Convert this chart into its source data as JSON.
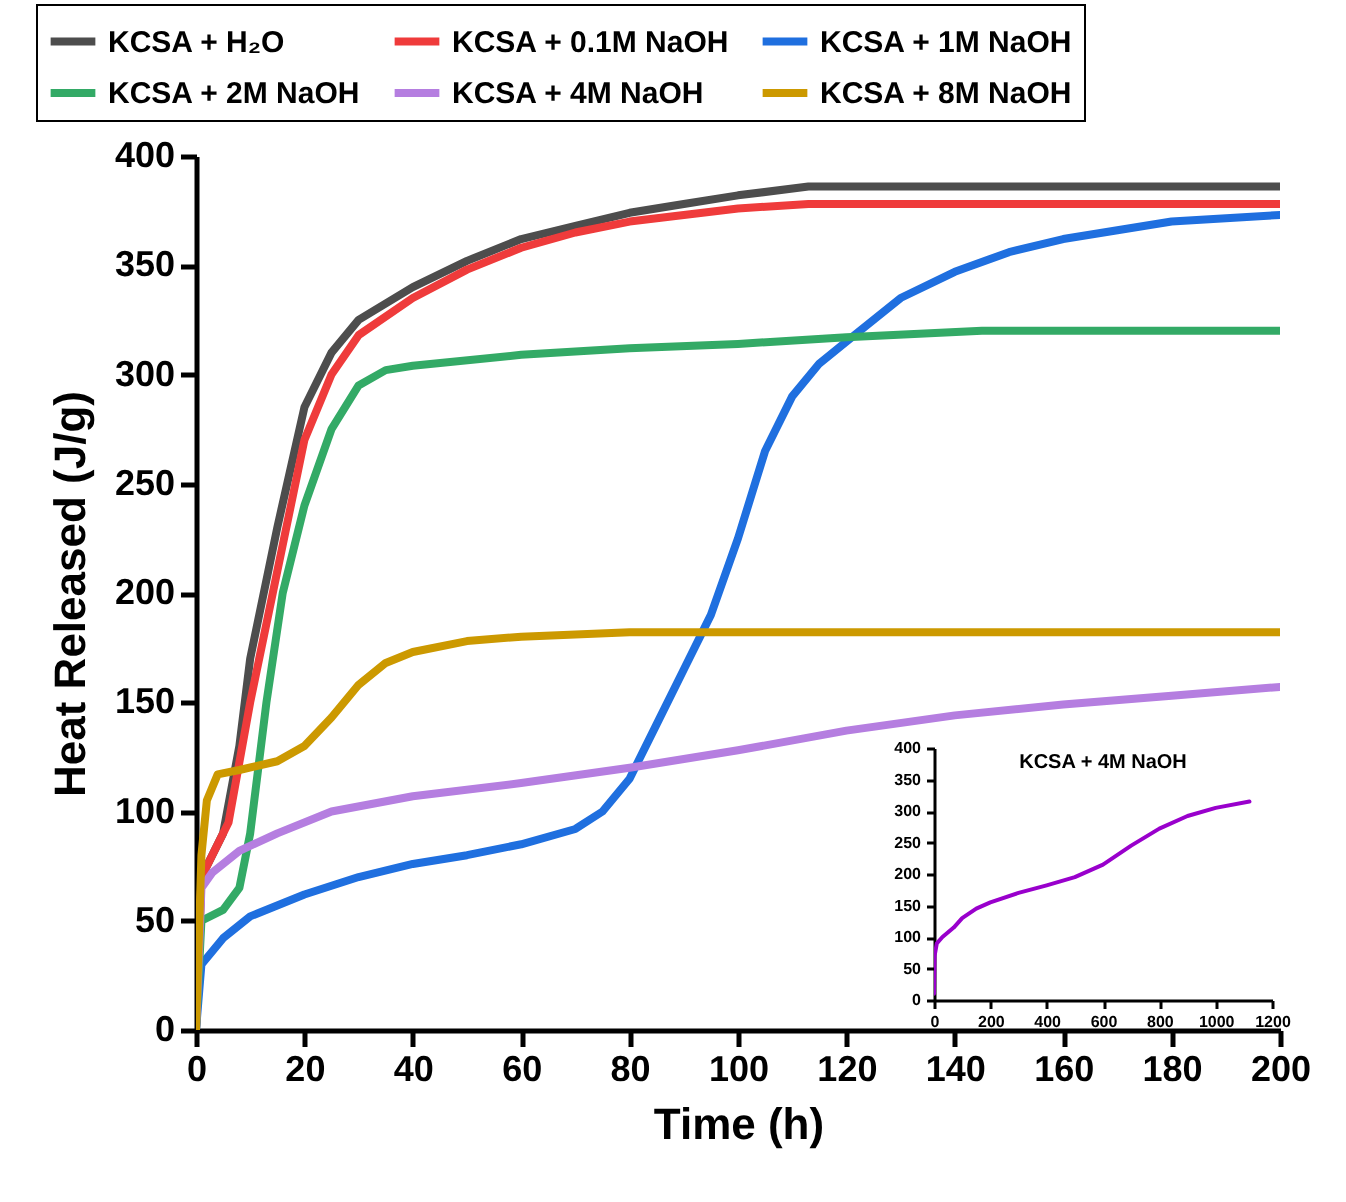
{
  "chart_data": [
    {
      "type": "line",
      "xlabel": "Time (h)",
      "ylabel": "Heat Released (J/g)",
      "xlim": [
        0,
        200
      ],
      "ylim": [
        0,
        400
      ],
      "xticks": [
        0,
        20,
        40,
        60,
        80,
        100,
        120,
        140,
        160,
        180,
        200
      ],
      "yticks": [
        0,
        50,
        100,
        150,
        200,
        250,
        300,
        350,
        400
      ],
      "grid": false,
      "legend": "top",
      "marker": "none",
      "line_style": "solid",
      "series": [
        {
          "name": "KCSA + H₂O",
          "color": "#4d4d4d",
          "x": [
            0,
            1,
            5,
            8,
            10,
            15,
            20,
            25,
            30,
            40,
            50,
            60,
            70,
            80,
            90,
            100,
            113,
            200
          ],
          "values": [
            0,
            70,
            90,
            130,
            170,
            230,
            285,
            310,
            325,
            340,
            352,
            362,
            368,
            374,
            378,
            382,
            386,
            386
          ]
        },
        {
          "name": "KCSA + 0.1M NaOH",
          "color": "#ef3b3b",
          "x": [
            0,
            1,
            3,
            6,
            10,
            15,
            20,
            25,
            30,
            40,
            50,
            60,
            70,
            80,
            90,
            100,
            113,
            200
          ],
          "values": [
            0,
            70,
            80,
            95,
            150,
            210,
            270,
            300,
            318,
            335,
            348,
            358,
            365,
            370,
            373,
            376,
            378,
            378
          ]
        },
        {
          "name": "KCSA + 1M NaOH",
          "color": "#1f6fdf",
          "x": [
            0,
            1,
            5,
            10,
            20,
            30,
            40,
            50,
            60,
            70,
            75,
            80,
            85,
            90,
            95,
            100,
            105,
            110,
            115,
            120,
            125,
            130,
            140,
            150,
            160,
            170,
            180,
            200
          ],
          "values": [
            0,
            30,
            42,
            52,
            62,
            70,
            76,
            80,
            85,
            92,
            100,
            115,
            140,
            165,
            190,
            225,
            265,
            290,
            305,
            315,
            325,
            335,
            347,
            356,
            362,
            366,
            370,
            373
          ]
        },
        {
          "name": "KCSA + 2M NaOH",
          "color": "#33aa66",
          "x": [
            0,
            1,
            5,
            8,
            10,
            13,
            16,
            20,
            25,
            30,
            35,
            40,
            60,
            80,
            100,
            120,
            145,
            200
          ],
          "values": [
            0,
            50,
            55,
            65,
            90,
            150,
            200,
            240,
            275,
            295,
            302,
            304,
            309,
            312,
            314,
            317,
            320,
            320
          ]
        },
        {
          "name": "KCSA + 4M NaOH",
          "color": "#b57ee0",
          "x": [
            0,
            1,
            3,
            8,
            15,
            25,
            40,
            60,
            80,
            100,
            120,
            140,
            160,
            180,
            200
          ],
          "values": [
            0,
            65,
            72,
            82,
            90,
            100,
            107,
            113,
            120,
            128,
            137,
            144,
            149,
            153,
            157
          ]
        },
        {
          "name": "KCSA + 8M NaOH",
          "color": "#cc9900",
          "x": [
            0,
            1,
            2,
            4,
            8,
            15,
            20,
            25,
            30,
            35,
            40,
            50,
            60,
            80,
            100,
            140,
            200
          ],
          "values": [
            0,
            80,
            105,
            117,
            119,
            123,
            130,
            143,
            158,
            168,
            173,
            178,
            180,
            182,
            182,
            182,
            182
          ]
        }
      ]
    },
    {
      "type": "line",
      "title": "KCSA + 4M NaOH",
      "xlim": [
        0,
        1200
      ],
      "ylim": [
        0,
        400
      ],
      "xticks": [
        0,
        200,
        400,
        600,
        800,
        1000,
        1200
      ],
      "yticks": [
        0,
        50,
        100,
        150,
        200,
        250,
        300,
        350,
        400
      ],
      "grid": false,
      "legend": false,
      "marker": "none",
      "line_style": "solid",
      "series": [
        {
          "color": "#9900cc",
          "x": [
            0,
            2,
            10,
            30,
            70,
            100,
            150,
            200,
            300,
            400,
            500,
            600,
            700,
            800,
            900,
            1000,
            1120
          ],
          "values": [
            10,
            70,
            90,
            100,
            115,
            130,
            145,
            155,
            170,
            182,
            195,
            215,
            245,
            272,
            292,
            305,
            315
          ]
        }
      ]
    }
  ]
}
